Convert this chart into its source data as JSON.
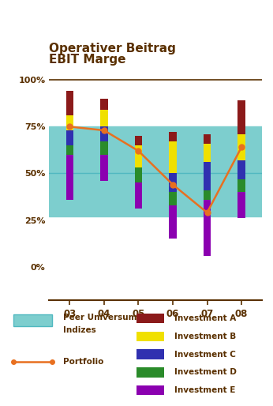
{
  "title_line1": "Operativer Beitrag",
  "title_line2": "EBIT Marge",
  "title_color": "#5a3000",
  "title_fontsize": 11,
  "years": [
    0,
    1,
    2,
    3,
    4,
    5
  ],
  "xlabels": [
    "03",
    "04",
    "05",
    "06",
    "07",
    "08"
  ],
  "ylim": [
    -18,
    108
  ],
  "yticks": [
    0,
    25,
    50,
    75,
    100
  ],
  "ytick_labels": [
    "0%",
    "25%",
    "50%",
    "75%",
    "100%"
  ],
  "peer_band_lo": 27,
  "peer_band_hi": 75,
  "peer_color": "#7dcece",
  "midline": 50,
  "midline_color": "#50b8c0",
  "midline_lw": 1.0,
  "portfolio_values": [
    75,
    73,
    62,
    44,
    29,
    64
  ],
  "portfolio_color": "#e87020",
  "portfolio_lw": 1.8,
  "portfolio_markersize": 5,
  "bar_width": 0.22,
  "colors": {
    "A": "#8b1a1a",
    "B": "#f0e000",
    "C": "#3030b0",
    "D": "#2a8b2a",
    "E": "#8b00b0"
  },
  "bars": {
    "03": {
      "A": 13,
      "B": 8,
      "C": 8,
      "D": 5,
      "E": -24
    },
    "04": {
      "A": 6,
      "B": 9,
      "C": 8,
      "D": 7,
      "E": -14
    },
    "05": {
      "A": 5,
      "B": 12,
      "C": 0,
      "D": 8,
      "E": -14
    },
    "06": {
      "A": 5,
      "B": 17,
      "C": 10,
      "D": 7,
      "E": -18
    },
    "07": {
      "A": 5,
      "B": 10,
      "C": 15,
      "D": 5,
      "E": -30
    },
    "08": {
      "A": 18,
      "B": 14,
      "C": 10,
      "D": 7,
      "E": -14
    }
  },
  "bar_base": {
    "03": 60,
    "04": 60,
    "05": 45,
    "06": 33,
    "07": 36,
    "08": 40
  },
  "background_color": "#ffffff",
  "text_color": "#5a3000",
  "spine_color": "#5a3000"
}
